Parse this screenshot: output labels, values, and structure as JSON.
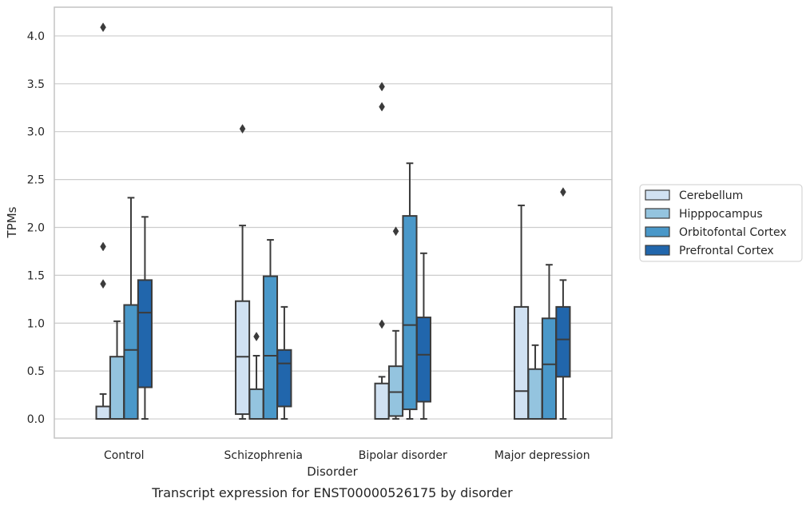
{
  "chart_data": {
    "type": "box",
    "caption": "Transcript expression for ENST00000526175 by disorder",
    "xlabel": "Disorder",
    "ylabel": "TPMs",
    "ylim": [
      -0.2,
      4.3
    ],
    "yticks": [
      0.0,
      0.5,
      1.0,
      1.5,
      2.0,
      2.5,
      3.0,
      3.5,
      4.0
    ],
    "ytick_labels": [
      "0.0",
      "0.5",
      "1.0",
      "1.5",
      "2.0",
      "2.5",
      "3.0",
      "3.5",
      "4.0"
    ],
    "grid": true,
    "legend_position": "right",
    "categories": [
      "Control",
      "Schizophrenia",
      "Bipolar disorder",
      "Major depression"
    ],
    "series": [
      {
        "name": "Cerebellum",
        "color": "#d0e1f2",
        "boxes": [
          {
            "whislo": 0.0,
            "q1": 0.0,
            "med": 0.0,
            "q3": 0.13,
            "whishi": 0.26,
            "fliers": [
              1.41,
              1.8,
              4.09
            ]
          },
          {
            "whislo": 0.0,
            "q1": 0.05,
            "med": 0.65,
            "q3": 1.23,
            "whishi": 2.02,
            "fliers": [
              3.03
            ]
          },
          {
            "whislo": 0.0,
            "q1": 0.0,
            "med": 0.0,
            "q3": 0.37,
            "whishi": 0.44,
            "fliers": [
              0.99,
              3.26,
              3.47
            ]
          },
          {
            "whislo": 0.0,
            "q1": 0.0,
            "med": 0.29,
            "q3": 1.17,
            "whishi": 2.23,
            "fliers": []
          }
        ]
      },
      {
        "name": "Hipppocampus",
        "color": "#94c4df",
        "boxes": [
          {
            "whislo": 0.0,
            "q1": 0.0,
            "med": 0.0,
            "q3": 0.65,
            "whishi": 1.02,
            "fliers": []
          },
          {
            "whislo": 0.0,
            "q1": 0.0,
            "med": 0.0,
            "q3": 0.31,
            "whishi": 0.66,
            "fliers": [
              0.86
            ]
          },
          {
            "whislo": 0.0,
            "q1": 0.03,
            "med": 0.28,
            "q3": 0.55,
            "whishi": 0.92,
            "fliers": [
              1.96
            ]
          },
          {
            "whislo": 0.0,
            "q1": 0.0,
            "med": 0.0,
            "q3": 0.52,
            "whishi": 0.77,
            "fliers": []
          }
        ]
      },
      {
        "name": "Orbitofontal Cortex",
        "color": "#4a98c9",
        "boxes": [
          {
            "whislo": 0.0,
            "q1": 0.0,
            "med": 0.72,
            "q3": 1.19,
            "whishi": 2.31,
            "fliers": []
          },
          {
            "whislo": 0.0,
            "q1": 0.0,
            "med": 0.66,
            "q3": 1.49,
            "whishi": 1.87,
            "fliers": []
          },
          {
            "whislo": 0.0,
            "q1": 0.1,
            "med": 0.98,
            "q3": 2.12,
            "whishi": 2.67,
            "fliers": []
          },
          {
            "whislo": 0.0,
            "q1": 0.0,
            "med": 0.57,
            "q3": 1.05,
            "whishi": 1.61,
            "fliers": []
          }
        ]
      },
      {
        "name": "Prefrontal Cortex",
        "color": "#2166ac",
        "boxes": [
          {
            "whislo": 0.0,
            "q1": 0.33,
            "med": 1.11,
            "q3": 1.45,
            "whishi": 2.11,
            "fliers": []
          },
          {
            "whislo": 0.0,
            "q1": 0.13,
            "med": 0.58,
            "q3": 0.72,
            "whishi": 1.17,
            "fliers": []
          },
          {
            "whislo": 0.0,
            "q1": 0.18,
            "med": 0.67,
            "q3": 1.06,
            "whishi": 1.73,
            "fliers": []
          },
          {
            "whislo": 0.0,
            "q1": 0.44,
            "med": 0.83,
            "q3": 1.17,
            "whishi": 1.45,
            "fliers": [
              2.37
            ]
          }
        ]
      }
    ],
    "style": {
      "box_edge_color": "#3b3b3b",
      "grid_color": "#cccccc",
      "axes_edge_color": "#c4c4c4",
      "legend_edge_color": "#cccccc"
    }
  }
}
